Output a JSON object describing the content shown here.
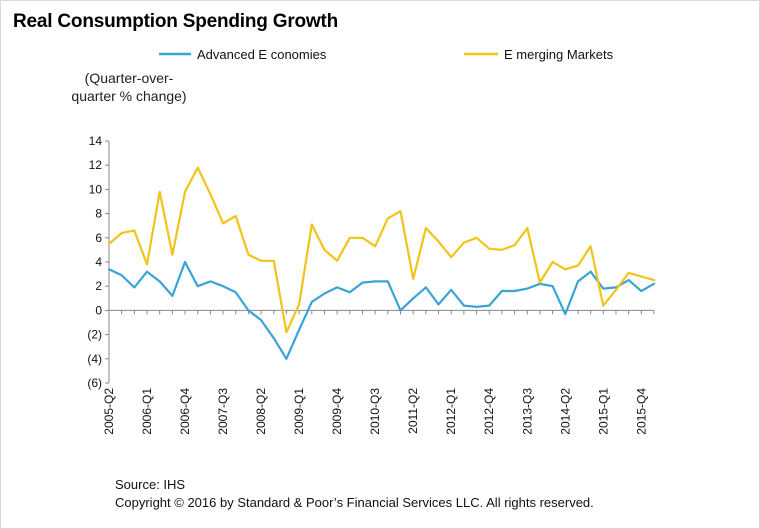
{
  "title": "Real Consumption Spending Growth",
  "unit_label_1": "(Quarter-over-",
  "unit_label_2": "quarter % change)",
  "source": "Source: IHS",
  "copyright": "Copyright © 2016 by Standard & Poor’s Financial Services LLC. All rights reserved.",
  "colors": {
    "advanced": "#3aa3d5",
    "emerging": "#f2c319",
    "axis": "#888888"
  },
  "chart_data": {
    "type": "line",
    "title": "Real Consumption Spending Growth",
    "ylabel": "(Quarter-over-quarter % change)",
    "xlabel": "",
    "ylim": [
      -6,
      14
    ],
    "yticks": [
      -6,
      -4,
      -2,
      0,
      2,
      4,
      6,
      8,
      10,
      12,
      14
    ],
    "ytick_labels": [
      "(6)",
      "(4)",
      "(2)",
      "0",
      "2",
      "4",
      "6",
      "8",
      "10",
      "12",
      "14"
    ],
    "grid": false,
    "legend_position": "top",
    "x": [
      "2005-Q2",
      "2005-Q3",
      "2005-Q4",
      "2006-Q1",
      "2006-Q2",
      "2006-Q3",
      "2006-Q4",
      "2007-Q1",
      "2007-Q2",
      "2007-Q3",
      "2007-Q4",
      "2008-Q1",
      "2008-Q2",
      "2008-Q3",
      "2008-Q4",
      "2009-Q1",
      "2009-Q2",
      "2009-Q3",
      "2009-Q4",
      "2010-Q1",
      "2010-Q2",
      "2010-Q3",
      "2010-Q4",
      "2011-Q1",
      "2011-Q2",
      "2011-Q3",
      "2011-Q4",
      "2012-Q1",
      "2012-Q2",
      "2012-Q3",
      "2012-Q4",
      "2013-Q1",
      "2013-Q2",
      "2013-Q3",
      "2013-Q4",
      "2014-Q1",
      "2014-Q2",
      "2014-Q3",
      "2014-Q4",
      "2015-Q1",
      "2015-Q2",
      "2015-Q3",
      "2015-Q4",
      "2016-Q1"
    ],
    "x_tick_labels": [
      {
        "index": 0,
        "label": "2005-Q2"
      },
      {
        "index": 3,
        "label": "2006-Q1"
      },
      {
        "index": 6,
        "label": "2006-Q4"
      },
      {
        "index": 9,
        "label": "2007-Q3"
      },
      {
        "index": 12,
        "label": "2008-Q2"
      },
      {
        "index": 15,
        "label": "2009-Q1"
      },
      {
        "index": 18,
        "label": "2009-Q4"
      },
      {
        "index": 21,
        "label": "2010-Q3"
      },
      {
        "index": 24,
        "label": "2011-Q2"
      },
      {
        "index": 27,
        "label": "2012-Q1"
      },
      {
        "index": 30,
        "label": "2012-Q4"
      },
      {
        "index": 33,
        "label": "2013-Q3"
      },
      {
        "index": 36,
        "label": "2014-Q2"
      },
      {
        "index": 39,
        "label": "2015-Q1"
      },
      {
        "index": 42,
        "label": "2015-Q4"
      }
    ],
    "series": [
      {
        "name": "Advanced E conomies",
        "color": "#3aa3d5",
        "values": [
          3.4,
          2.9,
          1.9,
          3.2,
          2.4,
          1.2,
          4.0,
          2.0,
          2.4,
          2.0,
          1.5,
          0.0,
          -0.8,
          -2.3,
          -4.0,
          -1.6,
          0.7,
          1.4,
          1.9,
          1.5,
          2.3,
          2.4,
          2.4,
          0.0,
          1.0,
          1.9,
          0.5,
          1.7,
          0.4,
          0.3,
          0.4,
          1.6,
          1.6,
          1.8,
          2.2,
          2.0,
          -0.3,
          2.4,
          3.2,
          1.8,
          1.9,
          2.5,
          1.6,
          2.2
        ]
      },
      {
        "name": "E merging Markets",
        "color": "#f2c319",
        "values": [
          5.5,
          6.4,
          6.6,
          3.8,
          9.8,
          4.6,
          9.8,
          11.8,
          9.6,
          7.2,
          7.8,
          4.6,
          4.1,
          4.1,
          -1.8,
          0.5,
          7.1,
          5.0,
          4.1,
          6.0,
          6.0,
          5.3,
          7.6,
          8.2,
          2.6,
          6.8,
          5.7,
          4.4,
          5.6,
          6.0,
          5.1,
          5.0,
          5.4,
          6.8,
          2.3,
          4.0,
          3.4,
          3.7,
          5.3,
          0.4,
          1.7,
          3.1,
          2.8,
          2.5
        ]
      }
    ]
  }
}
